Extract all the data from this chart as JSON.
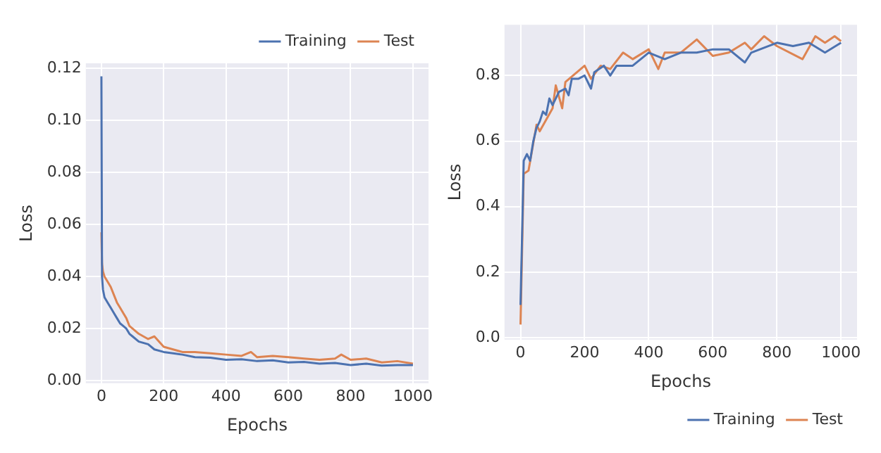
{
  "chart_data": [
    {
      "type": "line",
      "xlabel": "Epochs",
      "ylabel": "Loss",
      "xlim": [
        -50,
        1050
      ],
      "ylim": [
        -0.001,
        0.122
      ],
      "xticks": [
        0,
        200,
        400,
        600,
        800,
        1000
      ],
      "yticks": [
        {
          "value": 0,
          "label": "0.00"
        },
        {
          "value": 0.02,
          "label": "0.02"
        },
        {
          "value": 0.04,
          "label": "0.04"
        },
        {
          "value": 0.06,
          "label": "0.06"
        },
        {
          "value": 0.08,
          "label": "0.08"
        },
        {
          "value": 0.1,
          "label": "0.10"
        },
        {
          "value": 0.12,
          "label": "0.12"
        }
      ],
      "grid": true,
      "legend": "top right",
      "marker": "none",
      "line_style": "solid",
      "series": [
        {
          "name": "Training",
          "color": "#4c72b0",
          "x": [
            0,
            2,
            5,
            10,
            15,
            20,
            30,
            40,
            50,
            60,
            70,
            80,
            90,
            100,
            120,
            150,
            170,
            200,
            230,
            260,
            300,
            350,
            400,
            450,
            500,
            550,
            600,
            650,
            700,
            750,
            800,
            850,
            900,
            950,
            1000
          ],
          "values": [
            0.117,
            0.04,
            0.035,
            0.032,
            0.031,
            0.03,
            0.028,
            0.026,
            0.024,
            0.022,
            0.021,
            0.02,
            0.018,
            0.017,
            0.015,
            0.014,
            0.012,
            0.011,
            0.0105,
            0.01,
            0.009,
            0.0088,
            0.008,
            0.0082,
            0.0075,
            0.0078,
            0.007,
            0.0072,
            0.0065,
            0.0068,
            0.006,
            0.0065,
            0.0058,
            0.006,
            0.006
          ]
        },
        {
          "name": "Test",
          "color": "#dd8452",
          "x": [
            0,
            2,
            5,
            10,
            20,
            30,
            40,
            50,
            60,
            70,
            80,
            90,
            100,
            120,
            150,
            170,
            200,
            230,
            260,
            300,
            350,
            400,
            450,
            480,
            500,
            550,
            600,
            650,
            700,
            750,
            770,
            800,
            850,
            900,
            950,
            1000
          ],
          "values": [
            0.057,
            0.045,
            0.042,
            0.04,
            0.038,
            0.036,
            0.033,
            0.03,
            0.028,
            0.026,
            0.024,
            0.021,
            0.02,
            0.018,
            0.016,
            0.017,
            0.013,
            0.012,
            0.011,
            0.011,
            0.0105,
            0.01,
            0.0095,
            0.011,
            0.009,
            0.0095,
            0.009,
            0.0085,
            0.008,
            0.0085,
            0.01,
            0.008,
            0.0085,
            0.007,
            0.0075,
            0.0065
          ]
        }
      ]
    },
    {
      "type": "line",
      "xlabel": "Epochs",
      "ylabel": "Loss",
      "xlim": [
        -50,
        1050
      ],
      "ylim": [
        -0.006,
        0.955
      ],
      "xticks": [
        0,
        200,
        400,
        600,
        800,
        1000
      ],
      "yticks": [
        {
          "value": 0,
          "label": "0.0"
        },
        {
          "value": 0.2,
          "label": "0.2"
        },
        {
          "value": 0.4,
          "label": "0.4"
        },
        {
          "value": 0.6,
          "label": "0.6"
        },
        {
          "value": 0.8,
          "label": "0.8"
        }
      ],
      "grid": true,
      "legend": "bottom right",
      "marker": "none",
      "line_style": "solid",
      "series": [
        {
          "name": "Training",
          "color": "#4c72b0",
          "x": [
            0,
            10,
            20,
            30,
            40,
            50,
            60,
            70,
            80,
            90,
            100,
            120,
            140,
            150,
            160,
            180,
            200,
            220,
            230,
            260,
            280,
            300,
            350,
            400,
            450,
            500,
            550,
            600,
            650,
            700,
            720,
            800,
            850,
            900,
            950,
            1000
          ],
          "values": [
            0.1,
            0.54,
            0.56,
            0.54,
            0.6,
            0.64,
            0.66,
            0.69,
            0.68,
            0.73,
            0.71,
            0.75,
            0.76,
            0.74,
            0.79,
            0.79,
            0.8,
            0.76,
            0.81,
            0.83,
            0.8,
            0.83,
            0.83,
            0.87,
            0.85,
            0.87,
            0.87,
            0.88,
            0.88,
            0.84,
            0.87,
            0.9,
            0.89,
            0.9,
            0.87,
            0.9
          ]
        },
        {
          "name": "Test",
          "color": "#dd8452",
          "x": [
            0,
            10,
            25,
            50,
            60,
            100,
            110,
            130,
            140,
            200,
            220,
            250,
            280,
            320,
            350,
            400,
            430,
            450,
            500,
            550,
            600,
            650,
            700,
            720,
            760,
            800,
            880,
            920,
            950,
            980,
            1000
          ],
          "values": [
            0.04,
            0.5,
            0.51,
            0.65,
            0.63,
            0.7,
            0.77,
            0.7,
            0.78,
            0.83,
            0.79,
            0.83,
            0.82,
            0.87,
            0.85,
            0.88,
            0.82,
            0.87,
            0.87,
            0.91,
            0.86,
            0.87,
            0.9,
            0.88,
            0.92,
            0.89,
            0.85,
            0.92,
            0.9,
            0.92,
            0.905
          ]
        }
      ]
    }
  ]
}
